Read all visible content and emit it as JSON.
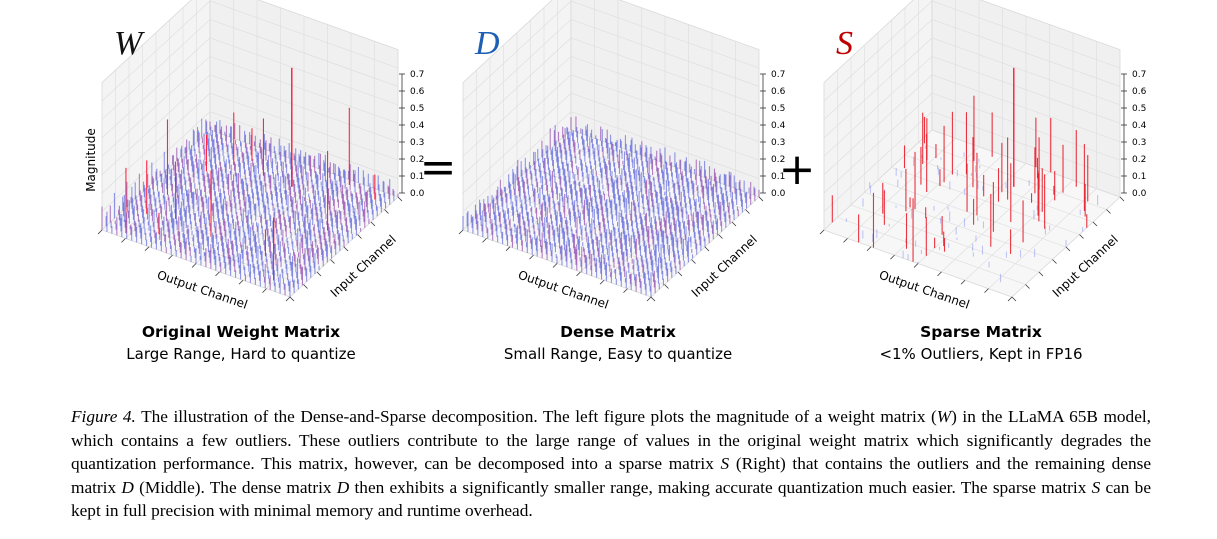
{
  "figure": {
    "equals_sign": "=",
    "plus_sign": "+",
    "panels": [
      {
        "id": "original",
        "symbol": "W",
        "symbol_color": "#111111",
        "title": "Original Weight Matrix",
        "subtitle": "Large Range, Hard to quantize",
        "z_axis_label": "Magnitude",
        "x_axis_label": "Output Channel",
        "y_axis_label": "Input Channel",
        "z_ticks": [
          "0.0",
          "0.1",
          "0.2",
          "0.3",
          "0.4",
          "0.5",
          "0.6",
          "0.7"
        ],
        "content_kind": "dense-with-outliers"
      },
      {
        "id": "dense",
        "symbol": "D",
        "symbol_color": "#1f5fb4",
        "title": "Dense Matrix",
        "subtitle": "Small Range, Easy to quantize",
        "z_axis_label": "",
        "x_axis_label": "Output Channel",
        "y_axis_label": "Input Channel",
        "z_ticks": [
          "0.0",
          "0.1",
          "0.2",
          "0.3",
          "0.4",
          "0.5",
          "0.6",
          "0.7"
        ],
        "content_kind": "dense"
      },
      {
        "id": "sparse",
        "symbol": "S",
        "symbol_color": "#c00000",
        "title": "Sparse Matrix",
        "subtitle": "<1% Outliers, Kept in FP16",
        "z_axis_label": "",
        "x_axis_label": "Output Channel",
        "y_axis_label": "Input Channel",
        "z_ticks": [
          "0.0",
          "0.1",
          "0.2",
          "0.3",
          "0.4",
          "0.5",
          "0.6",
          "0.7"
        ],
        "content_kind": "sparse"
      }
    ]
  },
  "caption": {
    "label": "Figure 4.",
    "segments": [
      " The illustration of the Dense-and-Sparse decomposition. The left figure plots the magnitude of a weight matrix (",
      "W",
      ") in the LLaMA 65B model, which contains a few outliers. These outliers contribute to the large range of values in the original weight matrix which significantly degrades the quantization performance. This matrix, however, can be decomposed into a sparse matrix ",
      "S",
      " (Right) that contains the outliers and the remaining dense matrix ",
      "D",
      " (Middle). The dense matrix ",
      "D",
      " then exhibits a significantly smaller range, making accurate quantization much easier. The sparse matrix ",
      "S",
      " can be kept in full precision with minimal memory and runtime overhead."
    ]
  }
}
